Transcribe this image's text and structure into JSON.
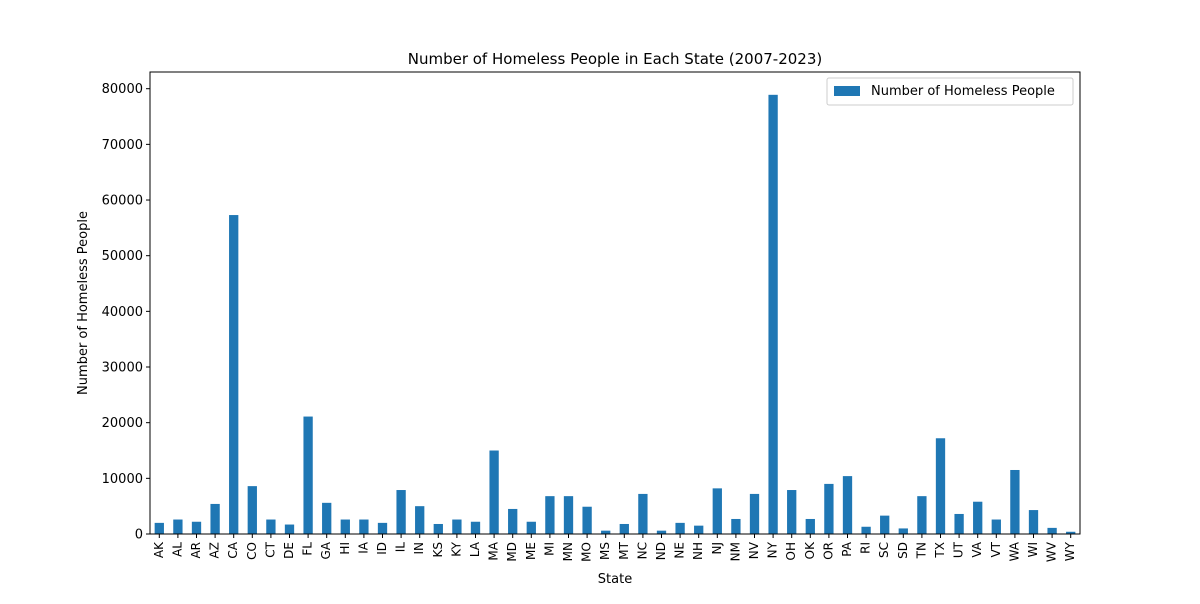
{
  "chart_data": {
    "type": "bar",
    "title": "Number of Homeless People in Each State (2007-2023)",
    "xlabel": "State",
    "ylabel": "Number of Homeless People",
    "categories": [
      "AK",
      "AL",
      "AR",
      "AZ",
      "CA",
      "CO",
      "CT",
      "DE",
      "FL",
      "GA",
      "HI",
      "IA",
      "ID",
      "IL",
      "IN",
      "KS",
      "KY",
      "LA",
      "MA",
      "MD",
      "ME",
      "MI",
      "MN",
      "MO",
      "MS",
      "MT",
      "NC",
      "ND",
      "NE",
      "NH",
      "NJ",
      "NM",
      "NV",
      "NY",
      "OH",
      "OK",
      "OR",
      "PA",
      "RI",
      "SC",
      "SD",
      "TN",
      "TX",
      "UT",
      "VA",
      "VT",
      "WA",
      "WI",
      "WV",
      "WY"
    ],
    "series": [
      {
        "name": "Number of Homeless People",
        "color": "#1f77b4",
        "values": [
          2000,
          2600,
          2200,
          5400,
          57300,
          8600,
          2600,
          1700,
          21100,
          5600,
          2600,
          2600,
          2000,
          7900,
          5000,
          1800,
          2600,
          2200,
          15000,
          4500,
          2200,
          6800,
          6800,
          4900,
          600,
          1800,
          7200,
          600,
          2000,
          1500,
          8200,
          2700,
          7200,
          78900,
          7900,
          2700,
          9000,
          10400,
          1300,
          3300,
          1000,
          6800,
          17200,
          3600,
          5800,
          2600,
          11500,
          4300,
          1100,
          400
        ]
      }
    ],
    "ylim": [
      0,
      83000
    ],
    "yticks": [
      0,
      10000,
      20000,
      30000,
      40000,
      50000,
      60000,
      70000,
      80000
    ],
    "grid": false,
    "legend_position": "top-right"
  }
}
